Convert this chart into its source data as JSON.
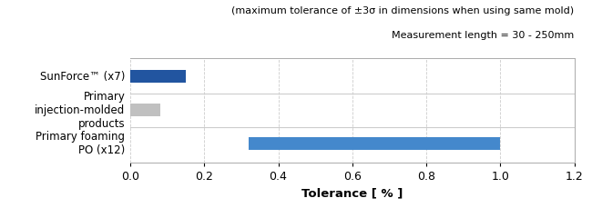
{
  "categories": [
    "SunForce™ (x7)",
    "Primary\ninjection-molded\nproducts",
    "Primary foaming\nPO (x12)"
  ],
  "values": [
    0.15,
    0.08,
    1.0
  ],
  "bar_colors": [
    "#2255A0",
    "#C0C0C0",
    "#4488CC"
  ],
  "bar_starts": [
    0.0,
    0.0,
    0.32
  ],
  "xlim": [
    0.0,
    1.2
  ],
  "xticks": [
    0.0,
    0.2,
    0.4,
    0.6,
    0.8,
    1.0,
    1.2
  ],
  "xlabel": "Tolerance [ % ]",
  "xlabel_fontsize": 9.5,
  "subtitle_line1": "(maximum tolerance of ±3σ in dimensions when using same mold)",
  "subtitle_line2": "Measurement length = 30 - 250mm",
  "subtitle_fontsize": 8,
  "tick_fontsize": 9,
  "label_fontsize": 8.5,
  "grid_color": "#CCCCCC",
  "figsize": [
    6.5,
    2.29
  ],
  "dpi": 100,
  "bg_color": "#F5F5F5"
}
